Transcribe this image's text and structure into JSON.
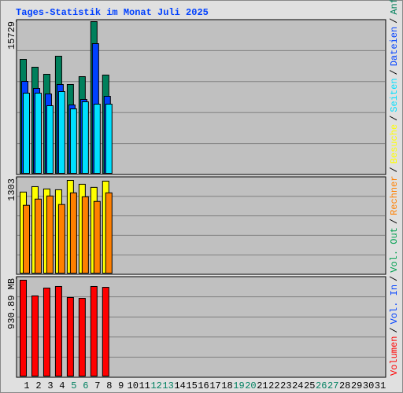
{
  "title": "Tages-Statistik im Monat Juli 2025",
  "separator": "/",
  "chart_data": [
    {
      "type": "bar",
      "ylim": [
        0,
        15729
      ],
      "yticks": [
        15729
      ],
      "series": [
        {
          "name": "Anfragen",
          "color": "#00805c",
          "values": [
            11817,
            11002,
            10269,
            12143,
            9209,
            10024,
            15729,
            10187,
            null,
            null,
            null,
            null,
            null,
            null,
            null,
            null,
            null,
            null,
            null,
            null,
            null,
            null,
            null,
            null,
            null,
            null,
            null,
            null,
            null,
            null,
            null
          ]
        },
        {
          "name": "Dateien",
          "color": "#0040ff",
          "values": [
            9535,
            8802,
            8231,
            9209,
            7090,
            7661,
            13447,
            7987,
            null,
            null,
            null,
            null,
            null,
            null,
            null,
            null,
            null,
            null,
            null,
            null,
            null,
            null,
            null,
            null,
            null,
            null,
            null,
            null,
            null,
            null,
            null
          ]
        },
        {
          "name": "Seiten",
          "color": "#00e0ff",
          "values": [
            8313,
            8313,
            7009,
            8476,
            6683,
            7416,
            7172,
            7172,
            null,
            null,
            null,
            null,
            null,
            null,
            null,
            null,
            null,
            null,
            null,
            null,
            null,
            null,
            null,
            null,
            null,
            null,
            null,
            null,
            null,
            null,
            null
          ]
        }
      ]
    },
    {
      "type": "bar",
      "ylim": [
        0,
        1303
      ],
      "yticks": [
        1303
      ],
      "series": [
        {
          "name": "Besuche",
          "color": "#ffff00",
          "values": [
            1120,
            1195,
            1163,
            1152,
            1281,
            1228,
            1185,
            1271,
            null,
            null,
            null,
            null,
            null,
            null,
            null,
            null,
            null,
            null,
            null,
            null,
            null,
            null,
            null,
            null,
            null,
            null,
            null,
            null,
            null,
            null,
            null
          ]
        },
        {
          "name": "Rechner",
          "color": "#ff8000",
          "values": [
            937,
            1023,
            1066,
            948,
            1109,
            1055,
            991,
            1109,
            null,
            null,
            null,
            null,
            null,
            null,
            null,
            null,
            null,
            null,
            null,
            null,
            null,
            null,
            null,
            null,
            null,
            null,
            null,
            null,
            null,
            null,
            null
          ]
        }
      ]
    },
    {
      "type": "bar",
      "ylim": [
        0,
        930.89
      ],
      "yticks": [
        {
          "value": 930.89,
          "label": "930.89 MB"
        }
      ],
      "categories": [
        "1",
        "2",
        "3",
        "4",
        "5",
        "6",
        "7",
        "8",
        "9",
        "10",
        "11",
        "12",
        "13",
        "14",
        "15",
        "16",
        "17",
        "18",
        "19",
        "20",
        "21",
        "22",
        "23",
        "24",
        "25",
        "26",
        "27",
        "28",
        "29",
        "30",
        "31"
      ],
      "highlight_categories": [
        "5",
        "6",
        "12",
        "13",
        "19",
        "20",
        "26",
        "27"
      ],
      "highlight_color": "#008060",
      "series": [
        {
          "name": "Vol. Out",
          "color": "#00a050",
          "values": [
            null,
            null,
            null,
            null,
            null,
            null,
            null,
            null,
            null,
            null,
            null,
            null,
            null,
            null,
            null,
            null,
            null,
            null,
            null,
            null,
            null,
            null,
            null,
            null,
            null,
            null,
            null,
            null,
            null,
            null,
            null
          ]
        },
        {
          "name": "Vol. In",
          "color": "#0040ff",
          "values": [
            null,
            null,
            null,
            null,
            null,
            null,
            null,
            null,
            null,
            null,
            null,
            null,
            null,
            null,
            null,
            null,
            null,
            null,
            null,
            null,
            null,
            null,
            null,
            null,
            null,
            null,
            null,
            null,
            null,
            null,
            null
          ]
        },
        {
          "name": "Volumen",
          "color": "#ff0000",
          "values": [
            916,
            766,
            841,
            856,
            751,
            743,
            856,
            848,
            null,
            null,
            null,
            null,
            null,
            null,
            null,
            null,
            null,
            null,
            null,
            null,
            null,
            null,
            null,
            null,
            null,
            null,
            null,
            null,
            null,
            null,
            null
          ]
        }
      ]
    }
  ]
}
